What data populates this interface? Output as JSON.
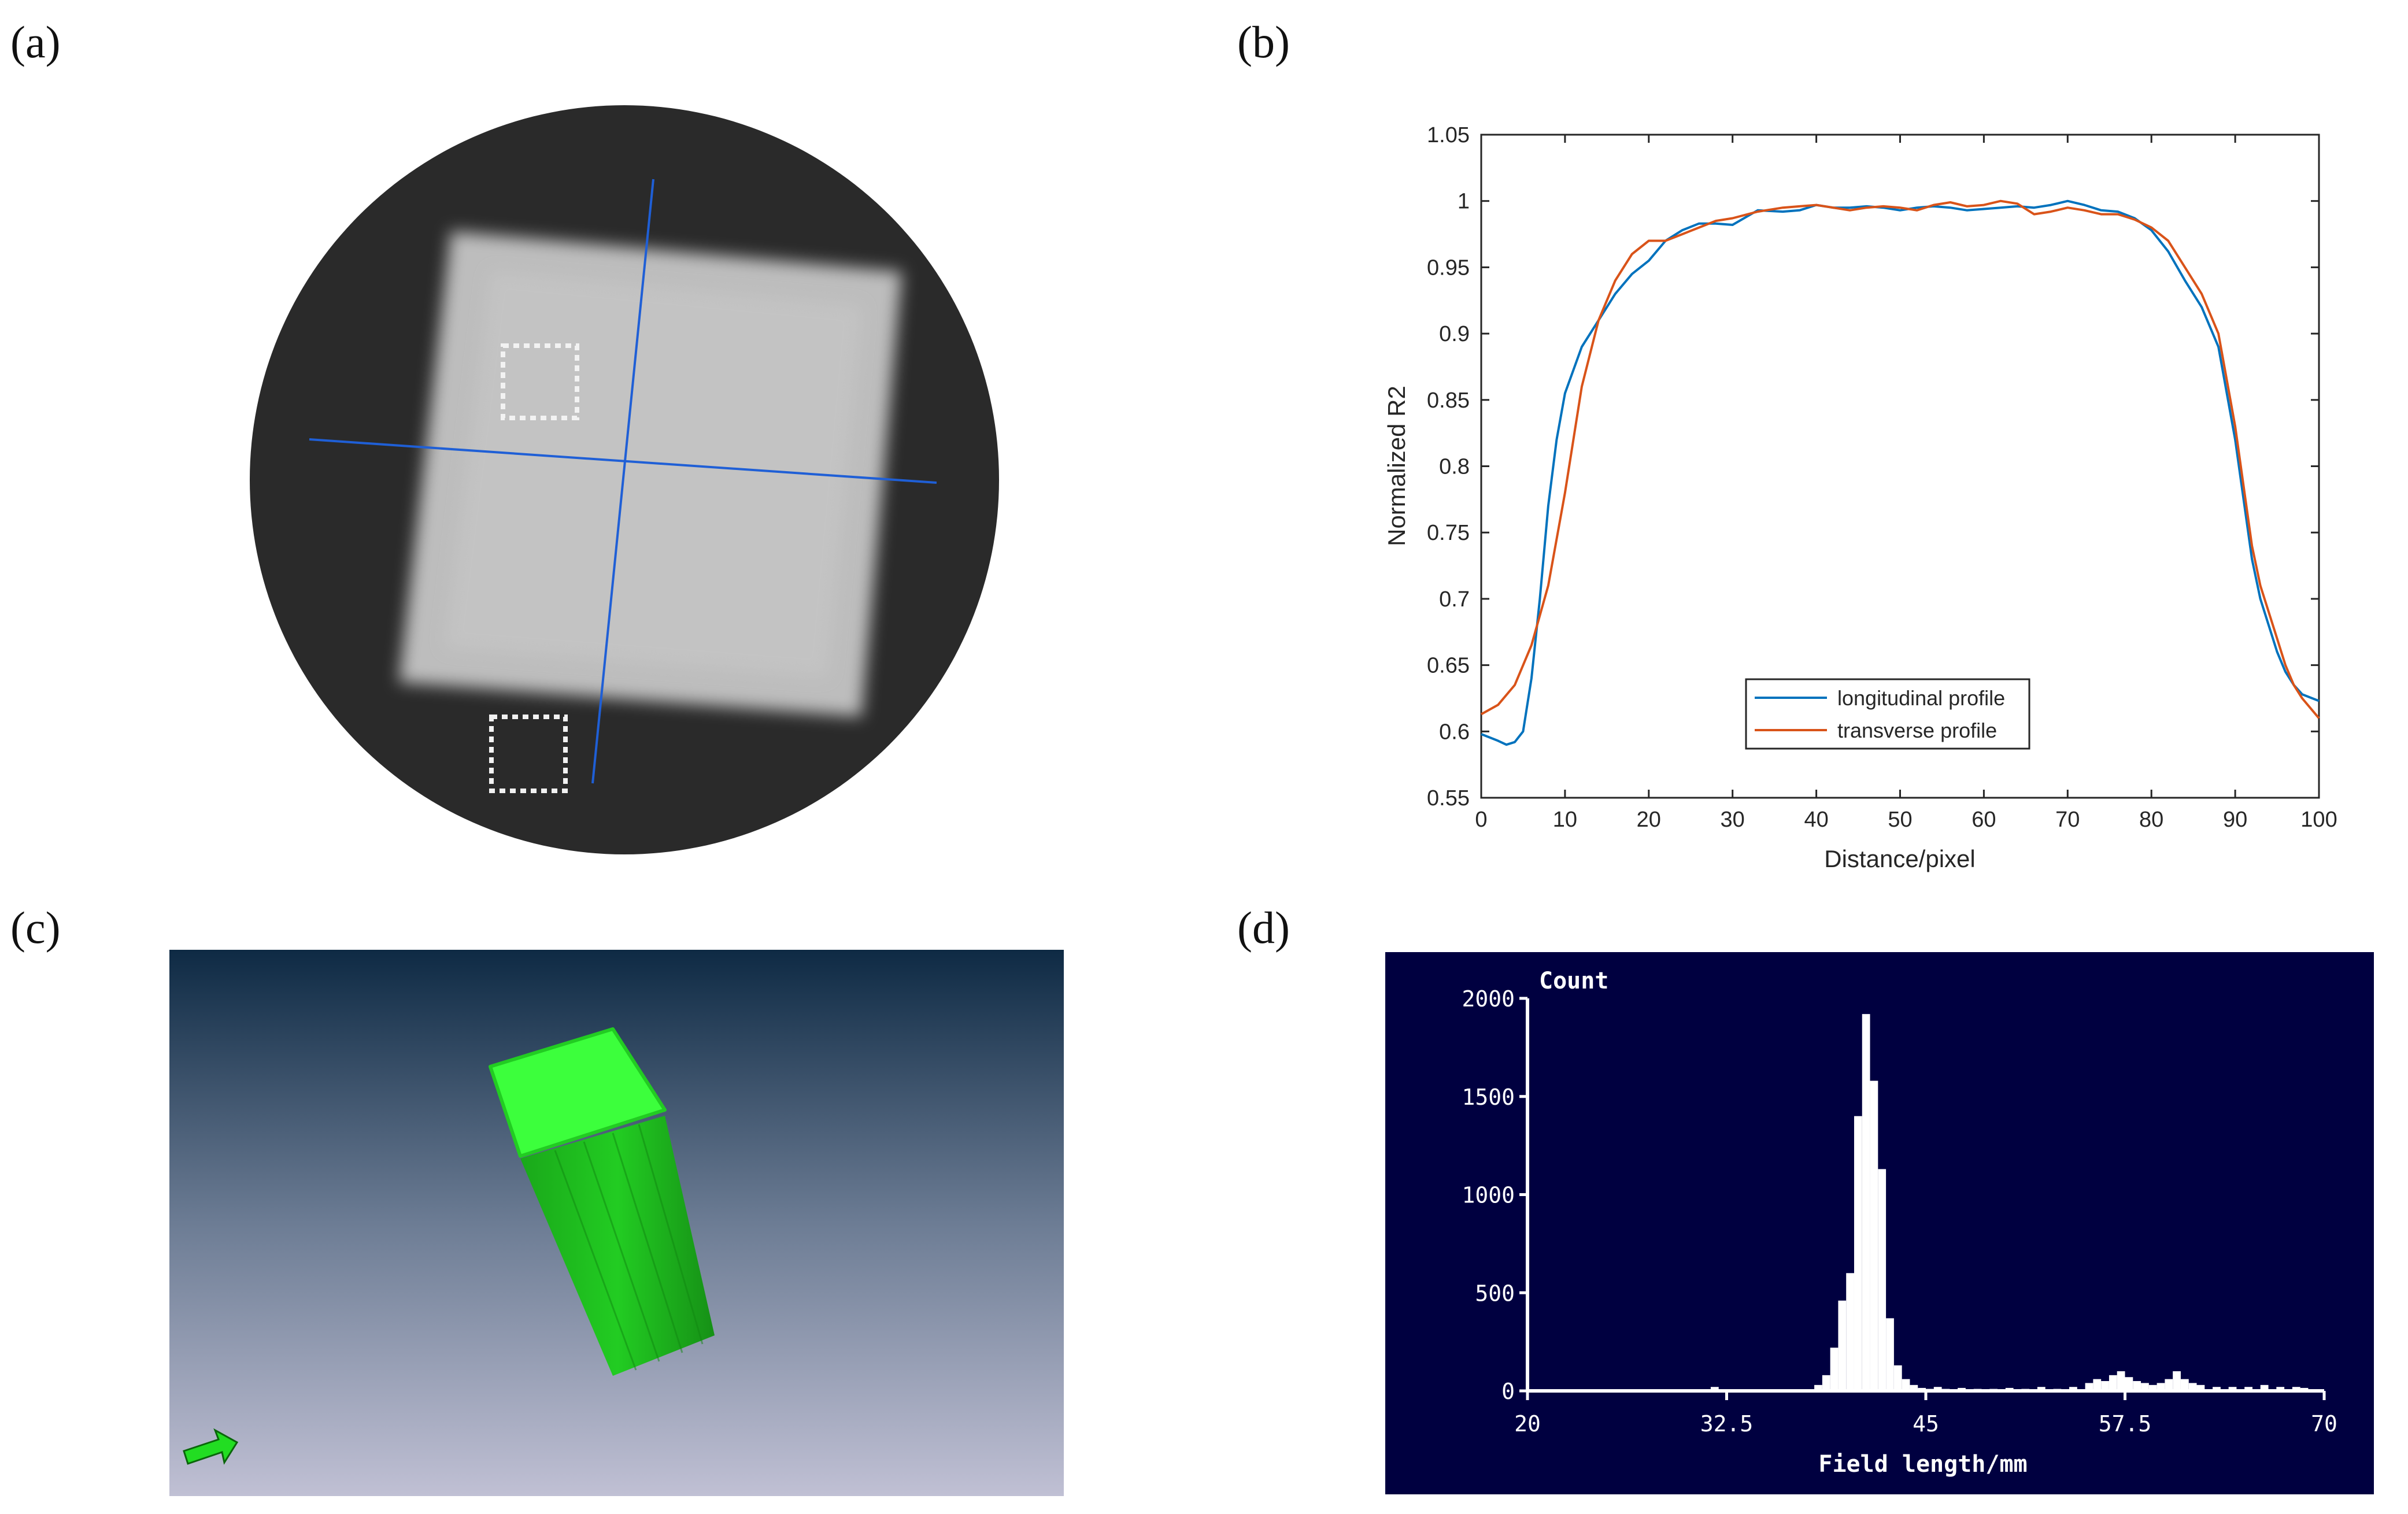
{
  "panels": {
    "a": {
      "label": "(a)"
    },
    "b": {
      "label": "(b)"
    },
    "c": {
      "label": "(c)"
    },
    "d": {
      "label": "(d)"
    }
  },
  "chart_data": [
    {
      "panel": "b",
      "type": "line",
      "xlabel": "Distance/pixel",
      "ylabel": "Normalized R2",
      "xlim": [
        0,
        100
      ],
      "ylim": [
        0.55,
        1.05
      ],
      "xticks": [
        "0",
        "10",
        "20",
        "30",
        "40",
        "50",
        "60",
        "70",
        "80",
        "90",
        "100"
      ],
      "yticks": [
        "0.55",
        "0.6",
        "0.65",
        "0.7",
        "0.75",
        "0.8",
        "0.85",
        "0.9",
        "0.95",
        "1",
        "1.05"
      ],
      "legend_position": "bottom-center",
      "grid": false,
      "series": [
        {
          "name": "longitudinal profile",
          "color": "#0072BD",
          "x": [
            0,
            2,
            3,
            4,
            5,
            6,
            7,
            8,
            9,
            10,
            12,
            14,
            16,
            18,
            20,
            22,
            24,
            26,
            28,
            30,
            33,
            36,
            38,
            40,
            42,
            44,
            46,
            48,
            50,
            52,
            54,
            56,
            58,
            60,
            62,
            64,
            66,
            68,
            70,
            72,
            74,
            76,
            78,
            80,
            82,
            84,
            86,
            88,
            90,
            92,
            93,
            94,
            95,
            96,
            97,
            98,
            100
          ],
          "y": [
            0.598,
            0.593,
            0.59,
            0.592,
            0.6,
            0.64,
            0.7,
            0.77,
            0.82,
            0.855,
            0.89,
            0.91,
            0.93,
            0.945,
            0.955,
            0.97,
            0.978,
            0.983,
            0.983,
            0.982,
            0.993,
            0.992,
            0.993,
            0.997,
            0.995,
            0.995,
            0.996,
            0.995,
            0.993,
            0.995,
            0.996,
            0.995,
            0.993,
            0.994,
            0.995,
            0.996,
            0.995,
            0.997,
            1.0,
            0.997,
            0.993,
            0.992,
            0.987,
            0.978,
            0.962,
            0.94,
            0.92,
            0.89,
            0.82,
            0.73,
            0.7,
            0.68,
            0.66,
            0.645,
            0.635,
            0.628,
            0.623
          ]
        },
        {
          "name": "transverse profile",
          "color": "#D95319",
          "x": [
            0,
            2,
            4,
            6,
            8,
            10,
            12,
            14,
            16,
            18,
            20,
            22,
            24,
            26,
            28,
            30,
            33,
            36,
            38,
            40,
            42,
            44,
            46,
            48,
            50,
            52,
            54,
            56,
            58,
            60,
            62,
            64,
            66,
            68,
            70,
            72,
            74,
            76,
            78,
            80,
            82,
            84,
            86,
            88,
            90,
            92,
            93,
            94,
            95,
            96,
            97,
            98,
            100
          ],
          "y": [
            0.613,
            0.62,
            0.635,
            0.665,
            0.71,
            0.78,
            0.86,
            0.91,
            0.94,
            0.96,
            0.97,
            0.97,
            0.975,
            0.98,
            0.985,
            0.987,
            0.992,
            0.995,
            0.996,
            0.997,
            0.995,
            0.993,
            0.995,
            0.996,
            0.995,
            0.993,
            0.997,
            0.999,
            0.996,
            0.997,
            1.0,
            0.998,
            0.99,
            0.992,
            0.995,
            0.993,
            0.99,
            0.99,
            0.986,
            0.98,
            0.97,
            0.95,
            0.93,
            0.9,
            0.83,
            0.74,
            0.71,
            0.69,
            0.67,
            0.65,
            0.635,
            0.625,
            0.61
          ]
        }
      ]
    },
    {
      "panel": "d",
      "type": "bar",
      "background": "#000040",
      "foreground": "#ffffff",
      "title": "Count",
      "xlabel": "Field length/mm",
      "xlim": [
        20,
        70
      ],
      "ylim": [
        0,
        2000
      ],
      "xticks": [
        "20",
        "32.5",
        "45",
        "57.5",
        "70"
      ],
      "yticks": [
        "0",
        "500",
        "1000",
        "1500",
        "2000"
      ],
      "bin_width": 0.5,
      "bins": [
        31.5,
        38,
        38.5,
        39,
        39.5,
        40,
        40.5,
        41,
        41.5,
        42,
        42.5,
        43,
        43.5,
        44,
        44.5,
        45,
        45.5,
        46,
        47,
        48,
        49,
        50,
        51,
        52,
        53,
        54,
        55,
        55.5,
        56,
        56.5,
        57,
        57.5,
        58,
        58.5,
        59,
        59.5,
        60,
        60.5,
        61,
        61.5,
        62,
        63,
        64,
        65,
        66,
        67,
        68,
        68.5
      ],
      "values": [
        20,
        30,
        80,
        220,
        460,
        600,
        1400,
        1920,
        1580,
        1130,
        370,
        130,
        60,
        30,
        15,
        10,
        20,
        10,
        15,
        10,
        10,
        15,
        10,
        20,
        10,
        20,
        40,
        60,
        50,
        80,
        100,
        70,
        50,
        40,
        30,
        40,
        60,
        100,
        60,
        40,
        30,
        20,
        20,
        20,
        30,
        20,
        20,
        15
      ]
    }
  ],
  "colors": {
    "square_fill": "#bdbdbd",
    "disc_fill": "#2a2a2a",
    "cross_line": "#1f5fd6",
    "box_green": "#22dd22",
    "scene_top": "#0e2a44",
    "scene_bottom": "#c0c0d4"
  }
}
